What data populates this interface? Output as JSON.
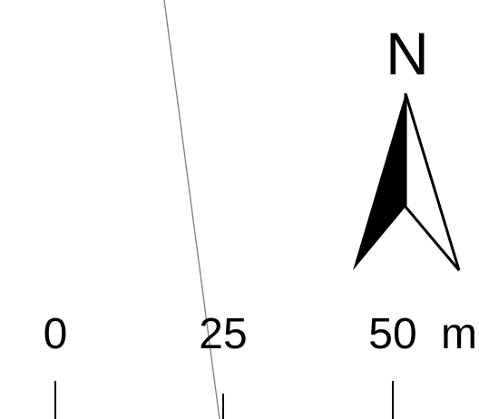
{
  "north_arrow": {
    "label": "N",
    "icon": "north-arrow-icon"
  },
  "scale_bar": {
    "ticks": [
      {
        "value": 0,
        "label": "0"
      },
      {
        "value": 25,
        "label": "25"
      },
      {
        "value": 50,
        "label": "50"
      }
    ],
    "unit": "m"
  },
  "colors": {
    "ink": "#000000",
    "feature_line": "#7f7f7f",
    "background": "#ffffff"
  }
}
